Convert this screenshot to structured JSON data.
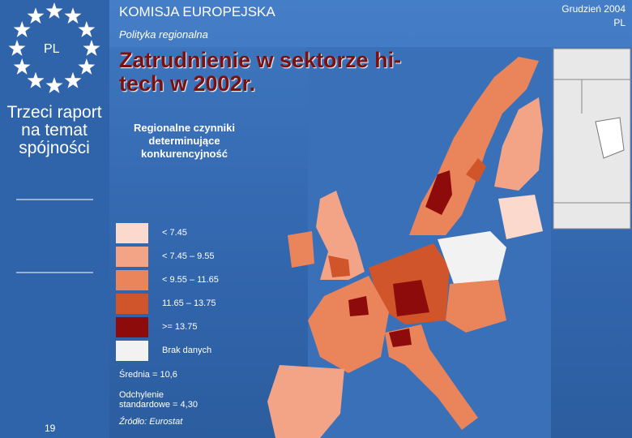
{
  "header": {
    "organization": "KOMISJA EUROPEJSKA",
    "department": "Polityka regionalna",
    "date": "Grudzień 2004",
    "country": "PL"
  },
  "sidebar": {
    "flag_label": "PL",
    "report_title": "Trzeci raport na temat spójności",
    "page_number": "19"
  },
  "slide": {
    "title": "Zatrudnienie w sektorze hi-tech w 2002r.",
    "subtitle": "Regionalne czynniki determinujące konkurencyjność"
  },
  "legend": {
    "items": [
      {
        "label": "< 7.45",
        "color": "#fbd9cc"
      },
      {
        "label": "< 7.45 – 9.55",
        "color": "#f3a487"
      },
      {
        "label": "< 9.55 – 11.65",
        "color": "#ea845b"
      },
      {
        "label": "11.65 – 13.75",
        "color": "#d0552a"
      },
      {
        "label": ">= 13.75",
        "color": "#8e0b0b"
      },
      {
        "label": "Brak danych",
        "color": "#f2f2f2"
      }
    ],
    "mean": "Średnia = 10,6",
    "std_dev": "Odchylenie standardowe = 4,30",
    "source": "Źródło: Eurostat"
  }
}
